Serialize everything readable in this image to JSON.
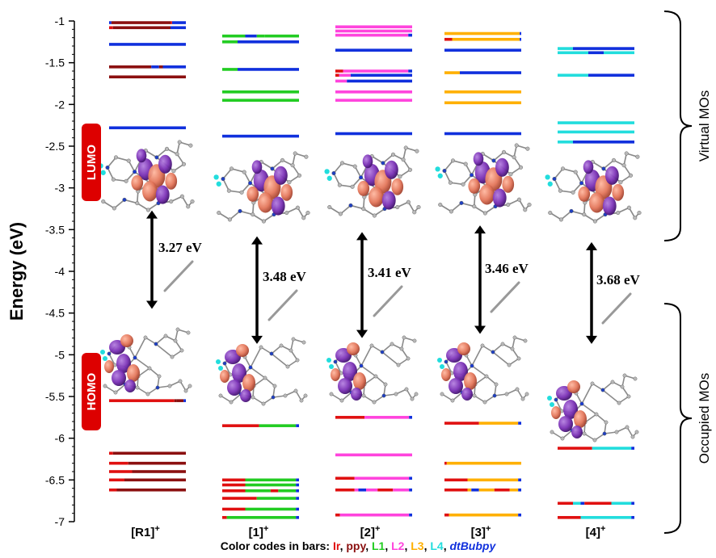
{
  "chart_data": {
    "type": "energy-level-diagram",
    "ylabel": "Energy (eV)",
    "ylim": [
      -7,
      -1
    ],
    "yticks": [
      -1,
      -1.5,
      -2,
      -2.5,
      -3,
      -3.5,
      -4,
      -4.5,
      -5,
      -5.5,
      -6,
      -6.5,
      -7
    ],
    "ytick_labels": [
      "-1",
      "-1.5",
      "-2",
      "-2.5",
      "-3",
      "-3.5",
      "-4",
      "-4.5",
      "-5",
      "-5.5",
      "-6",
      "-6.5",
      "-7"
    ],
    "categories": [
      "[R1]",
      "[1]",
      "[2]",
      "[3]",
      "[4]"
    ],
    "category_superscript": "+",
    "badges": {
      "lumo": "LUMO",
      "homo": "HOMO"
    },
    "region_labels": {
      "virtual": "Virtual MOs",
      "occupied": "Occupied MOs"
    },
    "colors": {
      "Ir": "#e01010",
      "ppy": "#8b1010",
      "L1": "#22cc22",
      "L2": "#ff44dd",
      "L3": "#ffb000",
      "L4": "#22dddd",
      "dtBubpy": "#1030dd",
      "badge": "#dd0000"
    },
    "legend": {
      "prefix": "Color codes in bars: ",
      "items": [
        {
          "label": "Ir",
          "key": "Ir"
        },
        {
          "label": "ppy",
          "key": "ppy"
        },
        {
          "label": "L1",
          "key": "L1"
        },
        {
          "label": "L2",
          "key": "L2"
        },
        {
          "label": "L3",
          "key": "L3"
        },
        {
          "label": "L4",
          "key": "L4"
        },
        {
          "label": "dtBubpy",
          "key": "dtBubpy"
        }
      ]
    },
    "series": [
      {
        "name": "[R1]",
        "gap": {
          "label": "3.27 eV",
          "from": -3.27,
          "to": -4.45
        },
        "levels": [
          {
            "e": -1.02,
            "segs": [
              [
                0.03,
                "dtBubpy"
              ],
              [
                0.77,
                "ppy"
              ],
              [
                0.02,
                "Ir"
              ],
              [
                0.18,
                "dtBubpy"
              ]
            ]
          },
          {
            "e": -1.08,
            "segs": [
              [
                0.05,
                "Ir"
              ],
              [
                0.75,
                "ppy"
              ],
              [
                0.2,
                "dtBubpy"
              ]
            ]
          },
          {
            "e": -1.28,
            "segs": [
              [
                1.0,
                "dtBubpy"
              ]
            ]
          },
          {
            "e": -1.55,
            "segs": [
              [
                0.55,
                "ppy"
              ],
              [
                0.1,
                "dtBubpy"
              ],
              [
                0.05,
                "ppy"
              ],
              [
                0.3,
                "dtBubpy"
              ]
            ]
          },
          {
            "e": -1.67,
            "segs": [
              [
                1.0,
                "ppy"
              ]
            ]
          },
          {
            "e": -2.28,
            "segs": [
              [
                1.0,
                "dtBubpy"
              ]
            ]
          },
          {
            "e": -5.55,
            "segs": [
              [
                0.85,
                "Ir"
              ],
              [
                0.03,
                "ppy"
              ],
              [
                0.09,
                "ppy"
              ],
              [
                0.03,
                "dtBubpy"
              ]
            ]
          },
          {
            "e": -6.18,
            "segs": [
              [
                0.05,
                "Ir"
              ],
              [
                0.95,
                "ppy"
              ]
            ]
          },
          {
            "e": -6.3,
            "segs": [
              [
                0.25,
                "Ir"
              ],
              [
                0.75,
                "ppy"
              ]
            ]
          },
          {
            "e": -6.4,
            "segs": [
              [
                0.3,
                "Ir"
              ],
              [
                0.7,
                "ppy"
              ]
            ]
          },
          {
            "e": -6.5,
            "segs": [
              [
                0.2,
                "Ir"
              ],
              [
                0.8,
                "ppy"
              ]
            ]
          },
          {
            "e": -6.62,
            "segs": [
              [
                0.1,
                "Ir"
              ],
              [
                0.9,
                "ppy"
              ]
            ]
          }
        ]
      },
      {
        "name": "[1]",
        "gap": {
          "label": "3.48 eV",
          "from": -3.58,
          "to": -4.87
        },
        "levels": [
          {
            "e": -1.18,
            "segs": [
              [
                0.3,
                "L1"
              ],
              [
                0.15,
                "dtBubpy"
              ],
              [
                0.1,
                "L1"
              ],
              [
                0.45,
                "L1"
              ]
            ]
          },
          {
            "e": -1.25,
            "segs": [
              [
                0.2,
                "L1"
              ],
              [
                0.8,
                "dtBubpy"
              ]
            ]
          },
          {
            "e": -1.58,
            "segs": [
              [
                0.2,
                "L1"
              ],
              [
                0.8,
                "dtBubpy"
              ]
            ]
          },
          {
            "e": -1.85,
            "segs": [
              [
                1.0,
                "L1"
              ]
            ]
          },
          {
            "e": -1.95,
            "segs": [
              [
                1.0,
                "L1"
              ]
            ]
          },
          {
            "e": -2.38,
            "segs": [
              [
                1.0,
                "dtBubpy"
              ]
            ]
          },
          {
            "e": -5.85,
            "segs": [
              [
                0.48,
                "Ir"
              ],
              [
                0.48,
                "L1"
              ],
              [
                0.04,
                "dtBubpy"
              ]
            ]
          },
          {
            "e": -6.5,
            "segs": [
              [
                0.3,
                "Ir"
              ],
              [
                0.66,
                "L1"
              ],
              [
                0.04,
                "dtBubpy"
              ]
            ]
          },
          {
            "e": -6.56,
            "segs": [
              [
                0.3,
                "Ir"
              ],
              [
                0.66,
                "L1"
              ],
              [
                0.04,
                "dtBubpy"
              ]
            ]
          },
          {
            "e": -6.63,
            "segs": [
              [
                0.3,
                "Ir"
              ],
              [
                0.33,
                "L1"
              ],
              [
                0.1,
                "Ir"
              ],
              [
                0.23,
                "L1"
              ],
              [
                0.04,
                "dtBubpy"
              ]
            ]
          },
          {
            "e": -6.72,
            "segs": [
              [
                0.45,
                "Ir"
              ],
              [
                0.51,
                "L1"
              ],
              [
                0.04,
                "dtBubpy"
              ]
            ]
          },
          {
            "e": -6.85,
            "segs": [
              [
                0.3,
                "Ir"
              ],
              [
                0.66,
                "L1"
              ],
              [
                0.04,
                "dtBubpy"
              ]
            ]
          },
          {
            "e": -6.95,
            "segs": [
              [
                0.06,
                "Ir"
              ],
              [
                0.9,
                "L1"
              ],
              [
                0.04,
                "dtBubpy"
              ]
            ]
          }
        ]
      },
      {
        "name": "[2]",
        "gap": {
          "label": "3.41 eV",
          "from": -3.53,
          "to": -4.8
        },
        "levels": [
          {
            "e": -1.07,
            "segs": [
              [
                1.0,
                "L2"
              ]
            ]
          },
          {
            "e": -1.12,
            "segs": [
              [
                1.0,
                "L2"
              ]
            ]
          },
          {
            "e": -1.17,
            "segs": [
              [
                0.95,
                "L2"
              ],
              [
                0.05,
                "dtBubpy"
              ]
            ]
          },
          {
            "e": -1.35,
            "segs": [
              [
                1.0,
                "dtBubpy"
              ]
            ]
          },
          {
            "e": -1.6,
            "segs": [
              [
                0.1,
                "Ir"
              ],
              [
                0.85,
                "L2"
              ],
              [
                0.05,
                "dtBubpy"
              ]
            ]
          },
          {
            "e": -1.65,
            "segs": [
              [
                0.05,
                "Ir"
              ],
              [
                0.15,
                "L2"
              ],
              [
                0.8,
                "dtBubpy"
              ]
            ]
          },
          {
            "e": -1.72,
            "segs": [
              [
                0.15,
                "L2"
              ],
              [
                0.85,
                "dtBubpy"
              ]
            ]
          },
          {
            "e": -1.85,
            "segs": [
              [
                1.0,
                "L2"
              ]
            ]
          },
          {
            "e": -1.95,
            "segs": [
              [
                1.0,
                "L2"
              ]
            ]
          },
          {
            "e": -2.35,
            "segs": [
              [
                1.0,
                "dtBubpy"
              ]
            ]
          },
          {
            "e": -5.75,
            "segs": [
              [
                0.38,
                "Ir"
              ],
              [
                0.58,
                "L2"
              ],
              [
                0.04,
                "dtBubpy"
              ]
            ]
          },
          {
            "e": -6.2,
            "segs": [
              [
                1.0,
                "L2"
              ]
            ]
          },
          {
            "e": -6.48,
            "segs": [
              [
                0.25,
                "Ir"
              ],
              [
                0.71,
                "L2"
              ],
              [
                0.04,
                "dtBubpy"
              ]
            ]
          },
          {
            "e": -6.62,
            "segs": [
              [
                0.25,
                "Ir"
              ],
              [
                0.05,
                "L2"
              ],
              [
                0.1,
                "dtBubpy"
              ],
              [
                0.15,
                "L2"
              ],
              [
                0.2,
                "Ir"
              ],
              [
                0.21,
                "L2"
              ],
              [
                0.04,
                "dtBubpy"
              ]
            ]
          },
          {
            "e": -6.92,
            "segs": [
              [
                0.06,
                "Ir"
              ],
              [
                0.9,
                "L2"
              ],
              [
                0.04,
                "dtBubpy"
              ]
            ]
          }
        ]
      },
      {
        "name": "[3]",
        "gap": {
          "label": "3.46 eV",
          "from": -3.45,
          "to": -4.75
        },
        "levels": [
          {
            "e": -1.15,
            "segs": [
              [
                0.1,
                "L3"
              ],
              [
                0.88,
                "L3"
              ],
              [
                0.02,
                "dtBubpy"
              ]
            ]
          },
          {
            "e": -1.22,
            "segs": [
              [
                0.1,
                "Ir"
              ],
              [
                0.88,
                "L3"
              ],
              [
                0.02,
                "dtBubpy"
              ]
            ]
          },
          {
            "e": -1.35,
            "segs": [
              [
                1.0,
                "dtBubpy"
              ]
            ]
          },
          {
            "e": -1.62,
            "segs": [
              [
                0.2,
                "L3"
              ],
              [
                0.8,
                "dtBubpy"
              ]
            ]
          },
          {
            "e": -1.85,
            "segs": [
              [
                1.0,
                "L3"
              ]
            ]
          },
          {
            "e": -1.98,
            "segs": [
              [
                1.0,
                "L3"
              ]
            ]
          },
          {
            "e": -2.35,
            "segs": [
              [
                1.0,
                "dtBubpy"
              ]
            ]
          },
          {
            "e": -5.82,
            "segs": [
              [
                0.45,
                "Ir"
              ],
              [
                0.51,
                "L3"
              ],
              [
                0.04,
                "dtBubpy"
              ]
            ]
          },
          {
            "e": -6.3,
            "segs": [
              [
                0.03,
                "Ir"
              ],
              [
                0.97,
                "L3"
              ]
            ]
          },
          {
            "e": -6.5,
            "segs": [
              [
                0.3,
                "Ir"
              ],
              [
                0.66,
                "L3"
              ],
              [
                0.04,
                "dtBubpy"
              ]
            ]
          },
          {
            "e": -6.62,
            "segs": [
              [
                0.3,
                "Ir"
              ],
              [
                0.05,
                "L3"
              ],
              [
                0.1,
                "dtBubpy"
              ],
              [
                0.2,
                "L3"
              ],
              [
                0.2,
                "Ir"
              ],
              [
                0.11,
                "L3"
              ],
              [
                0.04,
                "dtBubpy"
              ]
            ]
          },
          {
            "e": -6.92,
            "segs": [
              [
                0.06,
                "Ir"
              ],
              [
                0.9,
                "L3"
              ],
              [
                0.04,
                "dtBubpy"
              ]
            ]
          }
        ]
      },
      {
        "name": "[4]",
        "gap": {
          "label": "3.68 eV",
          "from": -3.65,
          "to": -4.87
        },
        "levels": [
          {
            "e": -1.33,
            "segs": [
              [
                0.2,
                "L4"
              ],
              [
                0.8,
                "dtBubpy"
              ]
            ]
          },
          {
            "e": -1.38,
            "segs": [
              [
                0.4,
                "L4"
              ],
              [
                0.2,
                "dtBubpy"
              ],
              [
                0.4,
                "L4"
              ]
            ]
          },
          {
            "e": -1.65,
            "segs": [
              [
                0.4,
                "L4"
              ],
              [
                0.6,
                "dtBubpy"
              ]
            ]
          },
          {
            "e": -2.22,
            "segs": [
              [
                1.0,
                "L4"
              ]
            ]
          },
          {
            "e": -2.33,
            "segs": [
              [
                1.0,
                "L4"
              ]
            ]
          },
          {
            "e": -2.45,
            "segs": [
              [
                0.2,
                "L4"
              ],
              [
                0.8,
                "dtBubpy"
              ]
            ]
          },
          {
            "e": -6.12,
            "segs": [
              [
                0.45,
                "Ir"
              ],
              [
                0.51,
                "L4"
              ],
              [
                0.04,
                "dtBubpy"
              ]
            ]
          },
          {
            "e": -6.78,
            "segs": [
              [
                0.2,
                "Ir"
              ],
              [
                0.1,
                "L4"
              ],
              [
                0.05,
                "dtBubpy"
              ],
              [
                0.35,
                "Ir"
              ],
              [
                0.26,
                "L4"
              ],
              [
                0.04,
                "dtBubpy"
              ]
            ]
          },
          {
            "e": -6.95,
            "segs": [
              [
                0.3,
                "Ir"
              ],
              [
                0.66,
                "L4"
              ],
              [
                0.04,
                "dtBubpy"
              ]
            ]
          }
        ]
      }
    ]
  }
}
